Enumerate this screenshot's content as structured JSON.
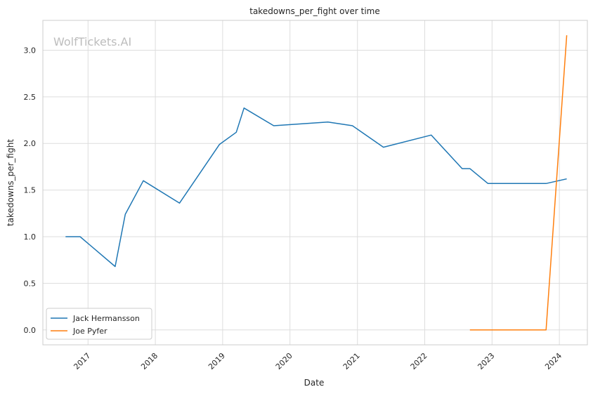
{
  "watermark": "WolfTickets.AI",
  "chart_data": {
    "type": "line",
    "title": "takedowns_per_fight over time",
    "xlabel": "Date",
    "ylabel": "takedowns_per_fight",
    "xlim": [
      "2016-05-01",
      "2024-06-01"
    ],
    "ylim": [
      -0.16,
      3.32
    ],
    "x_ticks": [
      "2017",
      "2018",
      "2019",
      "2020",
      "2021",
      "2022",
      "2023",
      "2024"
    ],
    "y_ticks": [
      "0.0",
      "0.5",
      "1.0",
      "1.5",
      "2.0",
      "2.5",
      "3.0"
    ],
    "grid": true,
    "legend_position": "lower-left",
    "series": [
      {
        "name": "Jack Hermansson",
        "color": "#1f77b4",
        "points": [
          {
            "x": "2016-09-01",
            "y": 1.0
          },
          {
            "x": "2016-11-19",
            "y": 1.0
          },
          {
            "x": "2017-05-28",
            "y": 0.68
          },
          {
            "x": "2017-07-22",
            "y": 1.24
          },
          {
            "x": "2017-10-28",
            "y": 1.6
          },
          {
            "x": "2018-05-12",
            "y": 1.36
          },
          {
            "x": "2018-12-15",
            "y": 1.99
          },
          {
            "x": "2019-03-16",
            "y": 2.12
          },
          {
            "x": "2019-04-27",
            "y": 2.38
          },
          {
            "x": "2019-10-05",
            "y": 2.19
          },
          {
            "x": "2020-07-25",
            "y": 2.23
          },
          {
            "x": "2020-12-05",
            "y": 2.19
          },
          {
            "x": "2021-05-22",
            "y": 1.96
          },
          {
            "x": "2022-02-05",
            "y": 2.09
          },
          {
            "x": "2022-07-23",
            "y": 1.73
          },
          {
            "x": "2022-09-03",
            "y": 1.73
          },
          {
            "x": "2022-12-10",
            "y": 1.57
          },
          {
            "x": "2023-10-21",
            "y": 1.57
          },
          {
            "x": "2024-02-10",
            "y": 1.62
          }
        ]
      },
      {
        "name": "Joe Pyfer",
        "color": "#ff7f0e",
        "points": [
          {
            "x": "2022-09-03",
            "y": 0.0
          },
          {
            "x": "2023-10-21",
            "y": 0.0
          },
          {
            "x": "2024-02-10",
            "y": 3.16
          }
        ]
      }
    ]
  }
}
